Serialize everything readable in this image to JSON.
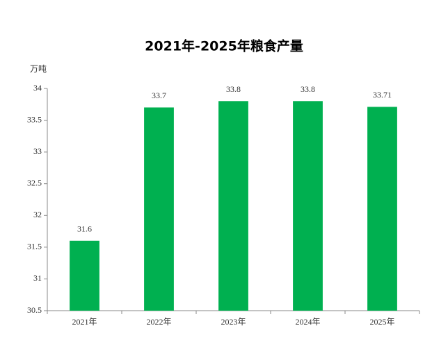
{
  "chart_data": {
    "type": "bar",
    "title": "2021年-2025年粮食产量",
    "y_label": "万吨",
    "categories": [
      "2021年",
      "2022年",
      "2023年",
      "2024年",
      "2025年"
    ],
    "values": [
      31.6,
      33.7,
      33.8,
      33.8,
      33.71
    ],
    "color": "#00b050",
    "ylim": [
      30.5,
      34
    ],
    "yticks": [
      30.5,
      31,
      31.5,
      32,
      32.5,
      33,
      33.5,
      34
    ],
    "grid": false
  }
}
